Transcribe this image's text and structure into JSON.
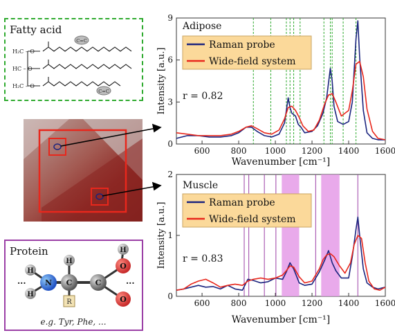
{
  "left": {
    "fatty_title": "Fatty acid",
    "protein_title": "Protein",
    "protein_caption": "e.g. Tyr, Phe, ...",
    "cc_label": "C=C",
    "r_label": "R",
    "amino_atoms": {
      "H": "H",
      "N": "N",
      "C": "C",
      "O": "O"
    },
    "colors": {
      "fatty_border": "#2eaa2e",
      "protein_border": "#9b3fa6",
      "roi_border": "#e8271c",
      "roi_marker": "#1a237e"
    }
  },
  "chart_data": [
    {
      "type": "line",
      "title": "Adipose",
      "xlabel": "Wavenumber [cm⁻¹]",
      "ylabel": "Intensity [a.u.]",
      "xlim": [
        460,
        1600
      ],
      "ylim": [
        0,
        9
      ],
      "xticks": [
        600,
        800,
        1000,
        1200,
        1400,
        1600
      ],
      "yticks": [
        0,
        3,
        6,
        9
      ],
      "annotation": "r = 0.82",
      "legend_position": "top-left",
      "reference_lines": [
        880,
        975,
        1060,
        1080,
        1100,
        1135,
        1265,
        1300,
        1310,
        1370,
        1440
      ],
      "series": [
        {
          "name": "Raman probe",
          "color": "#1a237e",
          "x": [
            460,
            520,
            580,
            640,
            700,
            760,
            800,
            840,
            870,
            900,
            940,
            980,
            1020,
            1050,
            1070,
            1080,
            1090,
            1110,
            1125,
            1140,
            1160,
            1200,
            1230,
            1260,
            1280,
            1300,
            1310,
            1320,
            1340,
            1370,
            1400,
            1420,
            1440,
            1450,
            1460,
            1480,
            1500,
            1530,
            1560,
            1600
          ],
          "y": [
            0.4,
            0.6,
            0.6,
            0.5,
            0.5,
            0.6,
            0.8,
            1.2,
            1.2,
            0.9,
            0.6,
            0.5,
            0.7,
            1.5,
            3.3,
            2.6,
            2.2,
            2.0,
            1.4,
            1.2,
            0.8,
            0.9,
            1.3,
            2.2,
            3.3,
            5.4,
            4.5,
            2.7,
            1.6,
            1.4,
            1.6,
            3.0,
            7.5,
            8.8,
            6.2,
            2.4,
            0.8,
            0.4,
            0.3,
            0.3
          ]
        },
        {
          "name": "Wide-field system",
          "color": "#e8271c",
          "x": [
            460,
            520,
            580,
            640,
            700,
            760,
            800,
            840,
            870,
            900,
            940,
            980,
            1020,
            1050,
            1070,
            1090,
            1110,
            1130,
            1150,
            1180,
            1210,
            1240,
            1270,
            1290,
            1310,
            1330,
            1360,
            1400,
            1420,
            1440,
            1460,
            1480,
            1500,
            1530,
            1560,
            1600
          ],
          "y": [
            0.8,
            0.7,
            0.6,
            0.6,
            0.6,
            0.7,
            0.9,
            1.2,
            1.3,
            1.1,
            0.8,
            0.7,
            1.0,
            1.8,
            2.6,
            2.7,
            2.4,
            1.9,
            1.3,
            0.9,
            1.0,
            1.7,
            2.9,
            3.5,
            3.6,
            3.0,
            2.0,
            2.4,
            3.8,
            5.7,
            5.9,
            4.8,
            2.5,
            0.9,
            0.4,
            0.3
          ]
        }
      ]
    },
    {
      "type": "line",
      "title": "Muscle",
      "xlabel": "Wavenumber [cm⁻¹]",
      "ylabel": "Intensity [a.u.]",
      "xlim": [
        460,
        1600
      ],
      "ylim": [
        0,
        2
      ],
      "xticks": [
        600,
        800,
        1000,
        1200,
        1400,
        1600
      ],
      "yticks": [
        0,
        1,
        2
      ],
      "annotation": "r = 0.83",
      "legend_position": "top-left",
      "reference_lines": [
        830,
        855,
        940,
        1003,
        1220,
        1450
      ],
      "shaded_regions": [
        [
          1035,
          1130
        ],
        [
          1250,
          1350
        ]
      ],
      "series": [
        {
          "name": "Raman probe",
          "color": "#1a237e",
          "x": [
            460,
            500,
            540,
            580,
            620,
            660,
            700,
            740,
            780,
            820,
            850,
            880,
            920,
            960,
            1000,
            1040,
            1060,
            1080,
            1100,
            1130,
            1160,
            1200,
            1240,
            1270,
            1290,
            1310,
            1330,
            1360,
            1400,
            1420,
            1440,
            1450,
            1460,
            1480,
            1500,
            1530,
            1560,
            1600
          ],
          "y": [
            0.1,
            0.12,
            0.15,
            0.18,
            0.15,
            0.16,
            0.12,
            0.18,
            0.12,
            0.1,
            0.28,
            0.26,
            0.22,
            0.24,
            0.3,
            0.28,
            0.4,
            0.55,
            0.45,
            0.22,
            0.18,
            0.2,
            0.4,
            0.6,
            0.75,
            0.55,
            0.42,
            0.3,
            0.3,
            0.65,
            1.1,
            1.3,
            1.0,
            0.45,
            0.22,
            0.15,
            0.12,
            0.15
          ]
        },
        {
          "name": "Wide-field system",
          "color": "#e8271c",
          "x": [
            460,
            500,
            540,
            580,
            620,
            660,
            700,
            740,
            780,
            820,
            850,
            880,
            920,
            960,
            1000,
            1040,
            1060,
            1080,
            1100,
            1130,
            1160,
            1200,
            1240,
            1260,
            1280,
            1300,
            1320,
            1350,
            1380,
            1410,
            1430,
            1450,
            1470,
            1490,
            1510,
            1540,
            1570,
            1600
          ],
          "y": [
            0.1,
            0.12,
            0.2,
            0.25,
            0.28,
            0.22,
            0.15,
            0.18,
            0.2,
            0.18,
            0.25,
            0.28,
            0.3,
            0.28,
            0.3,
            0.35,
            0.42,
            0.5,
            0.48,
            0.32,
            0.22,
            0.25,
            0.45,
            0.6,
            0.68,
            0.7,
            0.65,
            0.5,
            0.38,
            0.55,
            0.85,
            1.0,
            0.95,
            0.55,
            0.25,
            0.12,
            0.1,
            0.15
          ]
        }
      ]
    }
  ]
}
